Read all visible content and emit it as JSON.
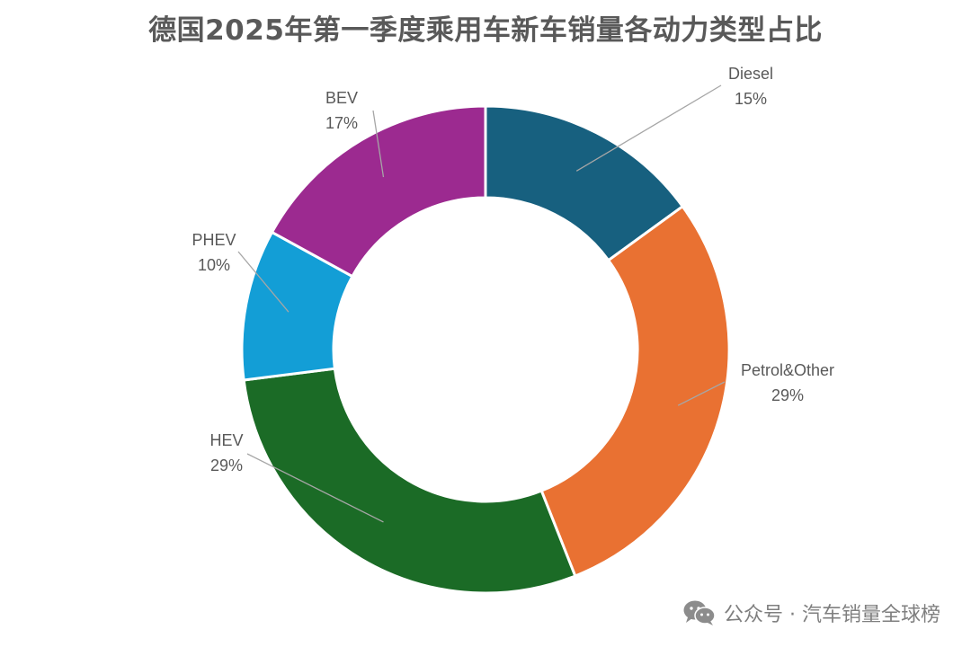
{
  "chart_data": {
    "type": "pie",
    "donut": true,
    "title": "德国2025年第一季度乘用车新车销量各动力类型占比",
    "unit": "%",
    "slices": [
      {
        "name": "Diesel",
        "value": 15,
        "label": "15%",
        "color": "#17607f"
      },
      {
        "name": "Petrol&Other",
        "value": 29,
        "label": "29%",
        "color": "#e97132"
      },
      {
        "name": "HEV",
        "value": 29,
        "label": "29%",
        "color": "#1b6b26"
      },
      {
        "name": "PHEV",
        "value": 10,
        "label": "10%",
        "color": "#139ed6"
      },
      {
        "name": "BEV",
        "value": 17,
        "label": "17%",
        "color": "#9c2a90"
      }
    ],
    "legend": "none",
    "data_labels": "outside-with-leader-lines"
  },
  "watermark": {
    "icon": "wechat-icon",
    "text": "公众号 · 汽车销量全球榜"
  }
}
